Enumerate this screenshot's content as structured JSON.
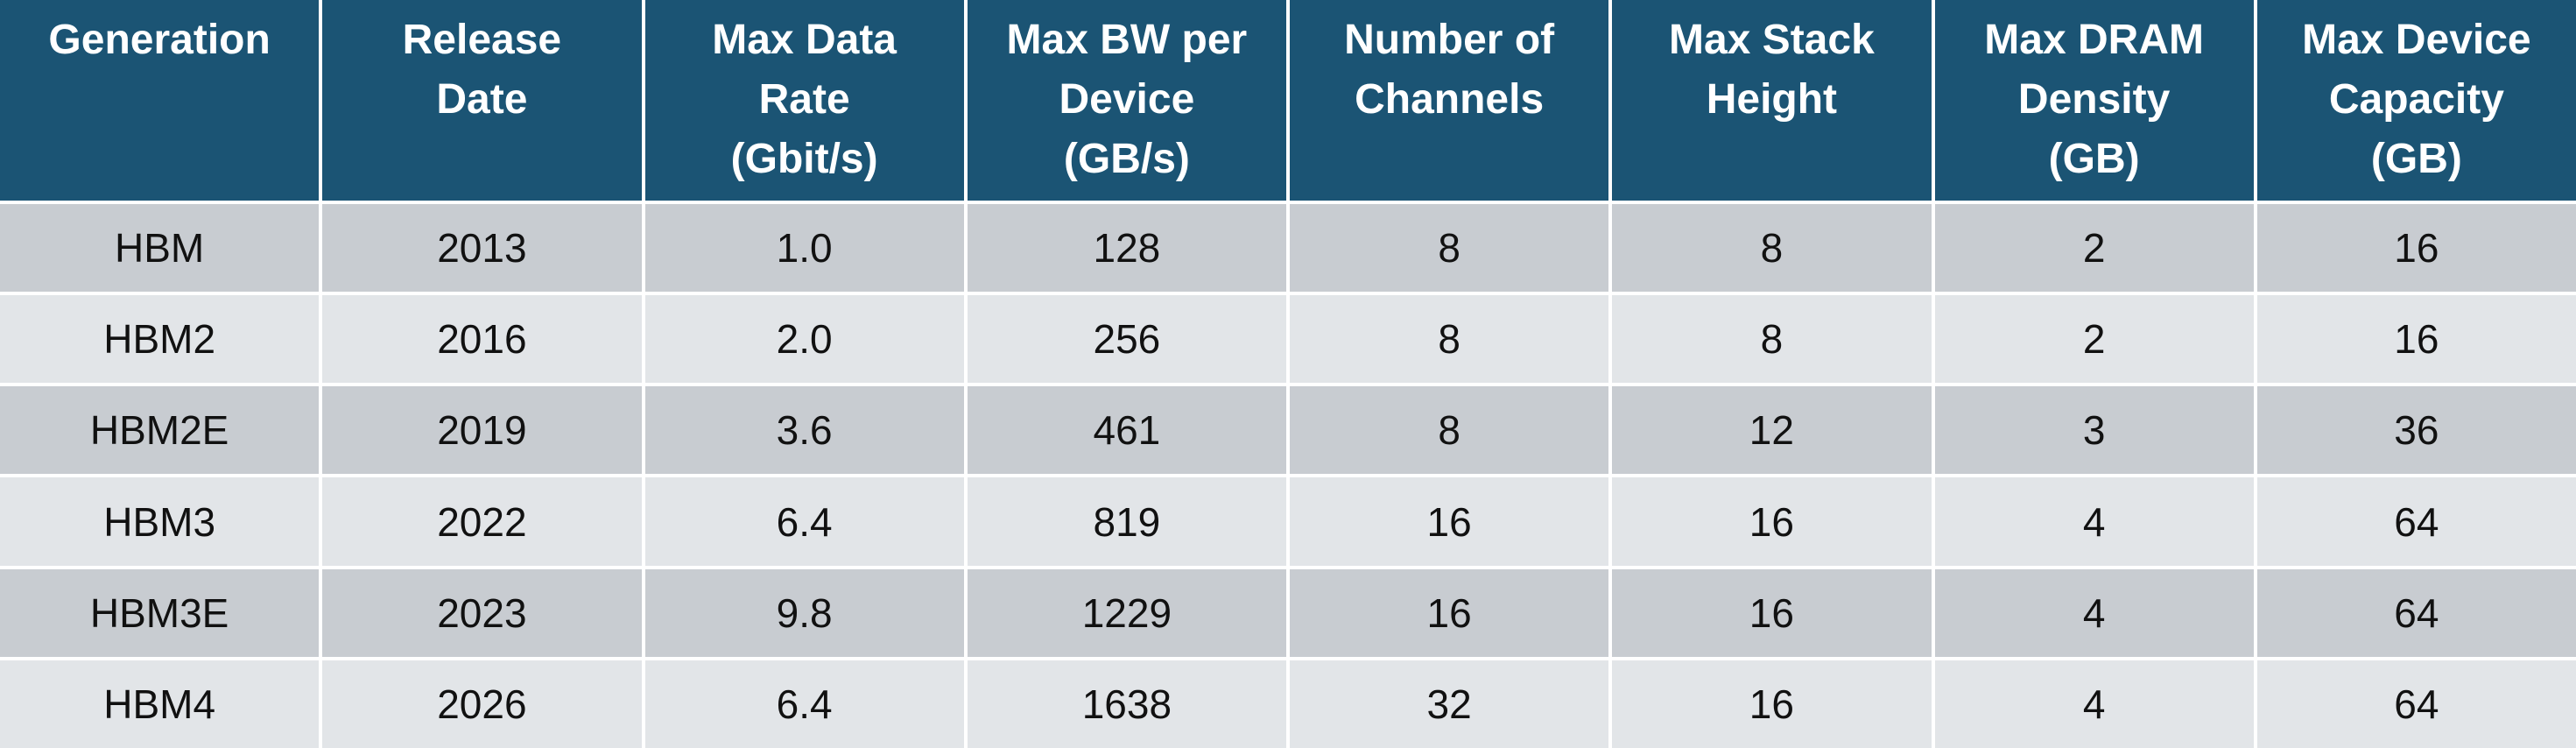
{
  "colors": {
    "header_bg": "#1b5474",
    "header_text": "#ffffff",
    "row_dark": "#c8ccd1",
    "row_light": "#e2e5e8",
    "cell_text": "#111111"
  },
  "table": {
    "headers": [
      "Generation",
      "Release\nDate",
      "Max Data\nRate\n(Gbit/s)",
      "Max BW per\nDevice\n(GB/s)",
      "Number of\nChannels",
      "Max Stack\nHeight",
      "Max DRAM\nDensity\n(GB)",
      "Max Device\nCapacity\n(GB)"
    ],
    "rows": [
      [
        "HBM",
        "2013",
        "1.0",
        "128",
        "8",
        "8",
        "2",
        "16"
      ],
      [
        "HBM2",
        "2016",
        "2.0",
        "256",
        "8",
        "8",
        "2",
        "16"
      ],
      [
        "HBM2E",
        "2019",
        "3.6",
        "461",
        "8",
        "12",
        "3",
        "36"
      ],
      [
        "HBM3",
        "2022",
        "6.4",
        "819",
        "16",
        "16",
        "4",
        "64"
      ],
      [
        "HBM3E",
        "2023",
        "9.8",
        "1229",
        "16",
        "16",
        "4",
        "64"
      ],
      [
        "HBM4",
        "2026",
        "6.4",
        "1638",
        "32",
        "16",
        "4",
        "64"
      ]
    ]
  }
}
